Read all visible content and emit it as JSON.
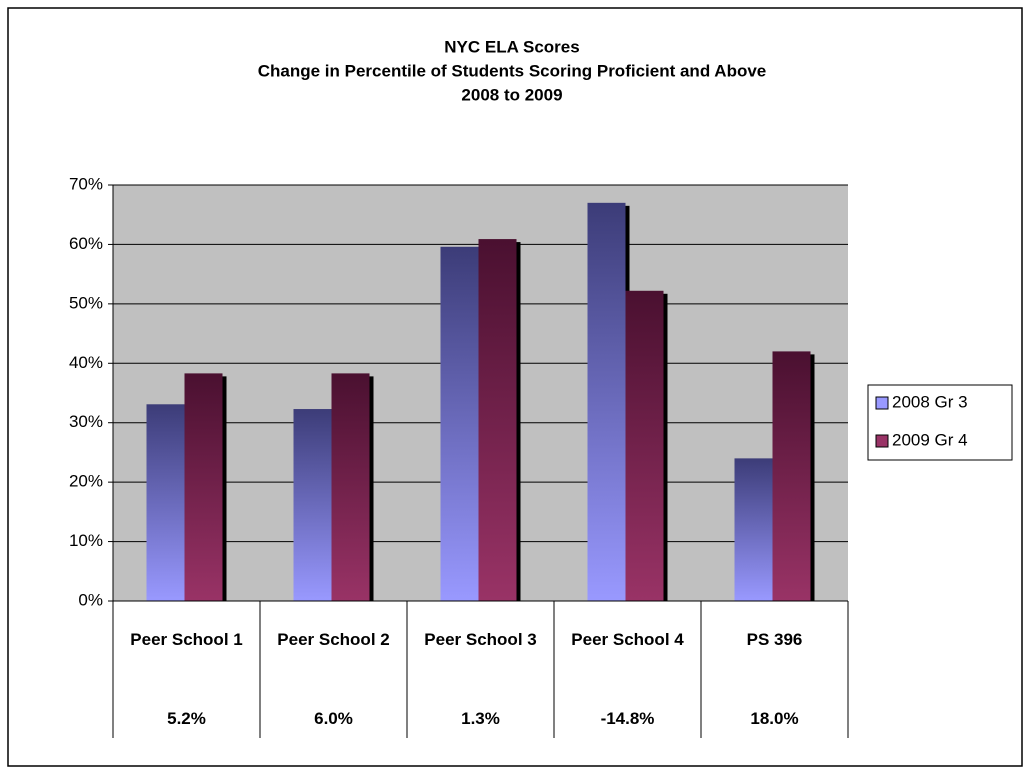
{
  "chart_data": {
    "type": "bar",
    "title": [
      "NYC ELA Scores",
      "Change in Percentile of Students Scoring Proficient and Above",
      "2008 to 2009"
    ],
    "categories": [
      "Peer School 1",
      "Peer School 2",
      "Peer School 3",
      "Peer School 4",
      "PS 396"
    ],
    "series": [
      {
        "name": "2008 Gr 3",
        "color": "#9999ff",
        "color_top": "#3c3c78",
        "values": [
          33.1,
          32.3,
          59.6,
          67.0,
          24.0
        ]
      },
      {
        "name": "2009 Gr 4",
        "color": "#993366",
        "color_top": "#4a1030",
        "values": [
          38.3,
          38.3,
          60.9,
          52.2,
          42.0
        ]
      }
    ],
    "table_row": [
      "5.2%",
      "6.0%",
      "1.3%",
      "-14.8%",
      "18.0%"
    ],
    "ylim": [
      0,
      70
    ],
    "yticks": [
      {
        "value": 0,
        "label": "0%"
      },
      {
        "value": 10,
        "label": "10%"
      },
      {
        "value": 20,
        "label": "20%"
      },
      {
        "value": 30,
        "label": "30%"
      },
      {
        "value": 40,
        "label": "40%"
      },
      {
        "value": 50,
        "label": "50%"
      },
      {
        "value": 60,
        "label": "60%"
      },
      {
        "value": 70,
        "label": "70%"
      }
    ],
    "grid": true,
    "legend": "right"
  }
}
